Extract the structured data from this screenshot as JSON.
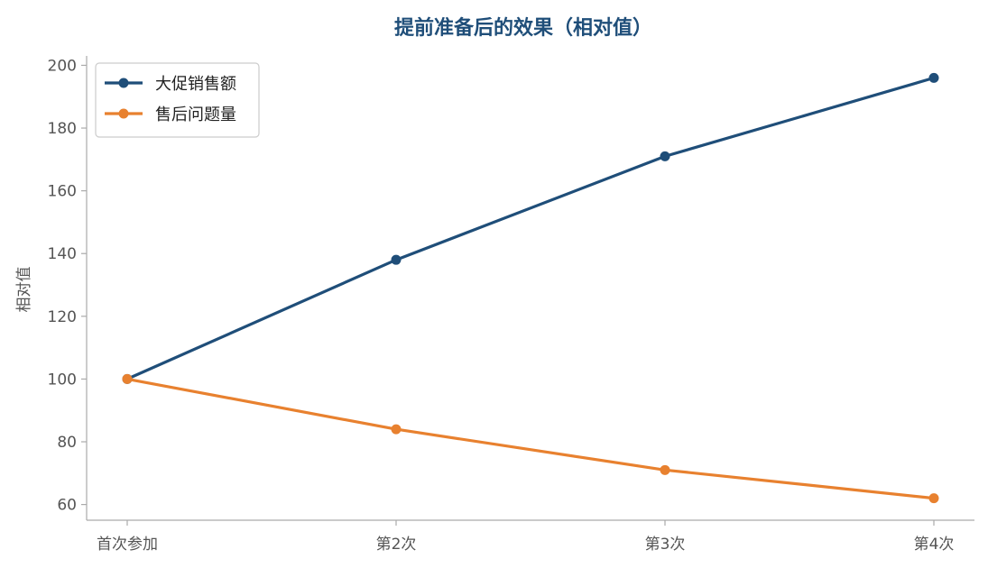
{
  "chart_data": {
    "type": "line",
    "title": "提前准备后的效果（相对值）",
    "ylabel": "相对值",
    "xlabel": "",
    "categories": [
      "首次参加",
      "第2次",
      "第3次",
      "第4次"
    ],
    "ylim": [
      55,
      203
    ],
    "yticks": [
      60,
      80,
      100,
      120,
      140,
      160,
      180,
      200
    ],
    "grid": false,
    "legend_position": "top-left",
    "series": [
      {
        "name": "大促销售额",
        "values": [
          100,
          138,
          171,
          196
        ],
        "color": "#1f4e79"
      },
      {
        "name": "售后问题量",
        "values": [
          100,
          84,
          71,
          62
        ],
        "color": "#e8812f"
      }
    ]
  },
  "colors": {
    "title": "#1f4e79",
    "axis": "#aaaaaa",
    "tick_label": "#555555"
  }
}
